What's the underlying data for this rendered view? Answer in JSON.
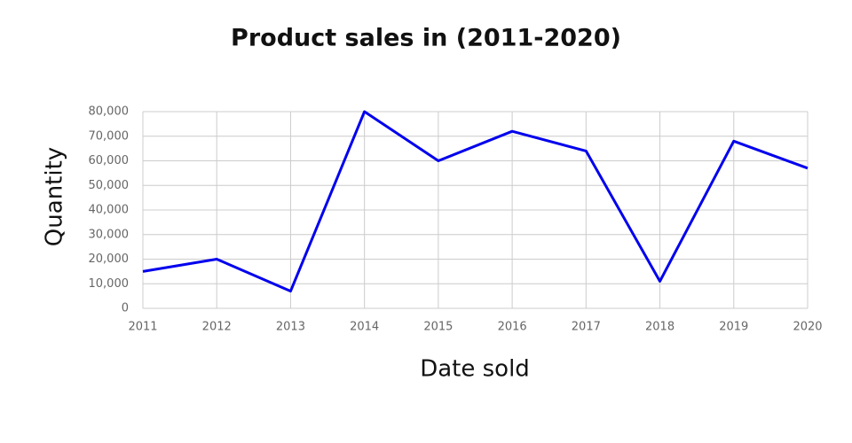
{
  "chart_data": {
    "type": "line",
    "title": "Product sales in (2011-2020)",
    "x_label": "Date sold",
    "y_label": "Quantity",
    "x": [
      2011,
      2012,
      2013,
      2014,
      2015,
      2016,
      2017,
      2018,
      2019,
      2020
    ],
    "series": [
      {
        "name": "Quantity",
        "color": "#0000ee",
        "values": [
          15000,
          20000,
          7000,
          80000,
          60000,
          72000,
          64000,
          11000,
          68000,
          57000
        ]
      }
    ],
    "xlim": [
      2011,
      2020
    ],
    "xticks": [
      2011,
      2012,
      2013,
      2014,
      2015,
      2016,
      2017,
      2018,
      2019,
      2020
    ],
    "ylim": [
      0,
      80000
    ],
    "yticks": [
      0,
      {
        "value": 10000,
        "label": "10,000"
      },
      {
        "value": 20000,
        "label": "20,000"
      },
      {
        "value": 30000,
        "label": "30,000"
      },
      {
        "value": 40000,
        "label": "40,000"
      },
      {
        "value": 50000,
        "label": "50,000"
      },
      {
        "value": 60000,
        "label": "60,000"
      },
      {
        "value": 70000,
        "label": "70,000"
      },
      {
        "value": 80000,
        "label": "80,000"
      }
    ],
    "grid": true
  }
}
